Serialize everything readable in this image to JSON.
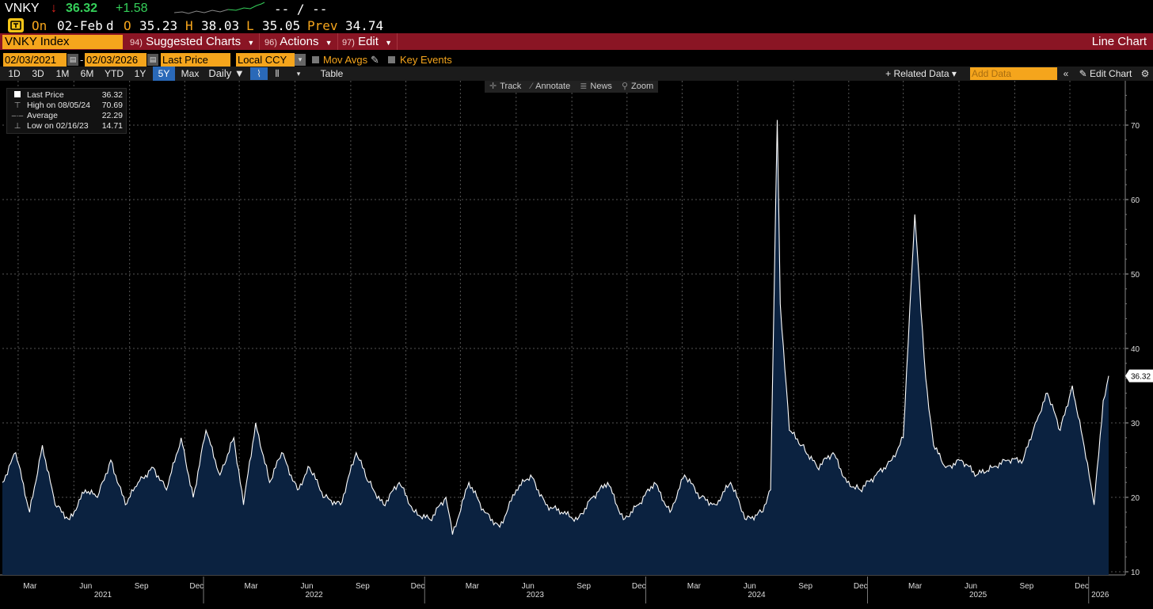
{
  "quote": {
    "ticker": "VNKY",
    "arrow": "↓",
    "last": "36.32",
    "change": "+1.58",
    "bidask": "-- / --",
    "date_label": "On",
    "date": "02-Feb",
    "period": "d",
    "open_label": "O",
    "open": "35.23",
    "high_label": "H",
    "high": "38.03",
    "low_label": "L",
    "low": "35.05",
    "prev_label": "Prev",
    "prev": "34.74"
  },
  "menu": {
    "security": "VNKY Index",
    "suggested_num": "94)",
    "suggested": "Suggested Charts",
    "actions_num": "96)",
    "actions": "Actions",
    "edit_num": "97)",
    "edit": "Edit",
    "title": "Line Chart"
  },
  "controls": {
    "start_date": "02/03/2021",
    "sep": "-",
    "end_date": "02/03/2026",
    "field": "Last Price",
    "currency": "Local CCY",
    "mov_avgs": "Mov Avgs",
    "key_events": "Key Events"
  },
  "ranges": {
    "items": [
      "1D",
      "3D",
      "1M",
      "6M",
      "YTD",
      "1Y",
      "5Y",
      "Max"
    ],
    "active": "5Y",
    "frequency": "Daily ▼",
    "table": "Table",
    "related": "+ Related Data ▾",
    "add_data_placeholder": "Add Data",
    "edit_chart": "✎ Edit Chart"
  },
  "toolbar": {
    "track": "Track",
    "annotate": "Annotate",
    "news": "News",
    "zoom": "Zoom"
  },
  "legend": {
    "last_label": "Last Price",
    "last_value": "36.32",
    "high_label": "High on 08/05/24",
    "high_value": "70.69",
    "avg_label": "Average",
    "avg_value": "22.29",
    "low_label": "Low on 02/16/23",
    "low_value": "14.71"
  },
  "colors": {
    "accent": "#f5a51c",
    "menu": "#8a1524",
    "area_fill": "#0b2240",
    "line": "#ffffff",
    "up": "#35d05a",
    "down": "#e0241e"
  },
  "chart_data": {
    "type": "area",
    "series": [
      {
        "name": "Last Price",
        "x": [
          "2021-02-03",
          "2021-02-25",
          "2021-03-20",
          "2021-04-10",
          "2021-05-01",
          "2021-05-25",
          "2021-06-20",
          "2021-07-10",
          "2021-08-01",
          "2021-08-25",
          "2021-09-15",
          "2021-10-10",
          "2021-11-01",
          "2021-11-25",
          "2021-12-15",
          "2022-01-05",
          "2022-01-28",
          "2022-02-20",
          "2022-03-08",
          "2022-03-28",
          "2022-04-20",
          "2022-05-10",
          "2022-06-05",
          "2022-06-25",
          "2022-07-20",
          "2022-08-15",
          "2022-09-10",
          "2022-10-01",
          "2022-10-25",
          "2022-11-20",
          "2022-12-15",
          "2023-01-10",
          "2023-02-05",
          "2023-02-16",
          "2023-03-15",
          "2023-04-10",
          "2023-05-05",
          "2023-06-01",
          "2023-06-25",
          "2023-07-20",
          "2023-08-15",
          "2023-09-10",
          "2023-10-05",
          "2023-10-30",
          "2023-11-25",
          "2023-12-20",
          "2024-01-15",
          "2024-02-10",
          "2024-03-05",
          "2024-04-01",
          "2024-04-25",
          "2024-05-20",
          "2024-06-15",
          "2024-07-10",
          "2024-07-25",
          "2024-08-05",
          "2024-08-10",
          "2024-08-25",
          "2024-09-15",
          "2024-10-10",
          "2024-11-05",
          "2024-11-28",
          "2024-12-20",
          "2025-01-15",
          "2025-02-10",
          "2025-03-01",
          "2025-03-20",
          "2025-04-07",
          "2025-04-20",
          "2025-05-10",
          "2025-06-05",
          "2025-06-30",
          "2025-07-25",
          "2025-08-20",
          "2025-09-15",
          "2025-10-05",
          "2025-10-25",
          "2025-11-15",
          "2025-12-05",
          "2025-12-22",
          "2026-01-10",
          "2026-01-25",
          "2026-02-03"
        ],
        "values": [
          22,
          26,
          18,
          27,
          19,
          17,
          21,
          20,
          25,
          19,
          22,
          24,
          21,
          28,
          20,
          29,
          23,
          28,
          19,
          30,
          22,
          26,
          21,
          24,
          20,
          19,
          26,
          22,
          19,
          22,
          18,
          17,
          20,
          15,
          22,
          18,
          16,
          21,
          23,
          19,
          18,
          17,
          20,
          22,
          17,
          19,
          22,
          18,
          23,
          20,
          19,
          22,
          17,
          18,
          21,
          70.69,
          46,
          29,
          27,
          24,
          26,
          22,
          21,
          23,
          25,
          28,
          58,
          36,
          27,
          24,
          25,
          23,
          24,
          25,
          25,
          30,
          34,
          29,
          35,
          28,
          19,
          33,
          36.32
        ]
      }
    ],
    "ylim": [
      10,
      77
    ],
    "yticks": [
      10,
      20,
      30,
      40,
      50,
      60,
      70
    ],
    "xlim": [
      "2021-02-03",
      "2026-02-03"
    ],
    "month_ticks": [
      "Mar",
      "Jun",
      "Sep",
      "Dec",
      "Mar",
      "Jun",
      "Sep",
      "Dec",
      "Mar",
      "Jun",
      "Sep",
      "Dec",
      "Mar",
      "Jun",
      "Sep",
      "Dec",
      "Mar",
      "Jun",
      "Sep",
      "Dec"
    ],
    "year_labels": [
      "2021",
      "2022",
      "2023",
      "2024",
      "2025",
      "2026"
    ],
    "last_value_label": "36.32",
    "grid": true
  }
}
